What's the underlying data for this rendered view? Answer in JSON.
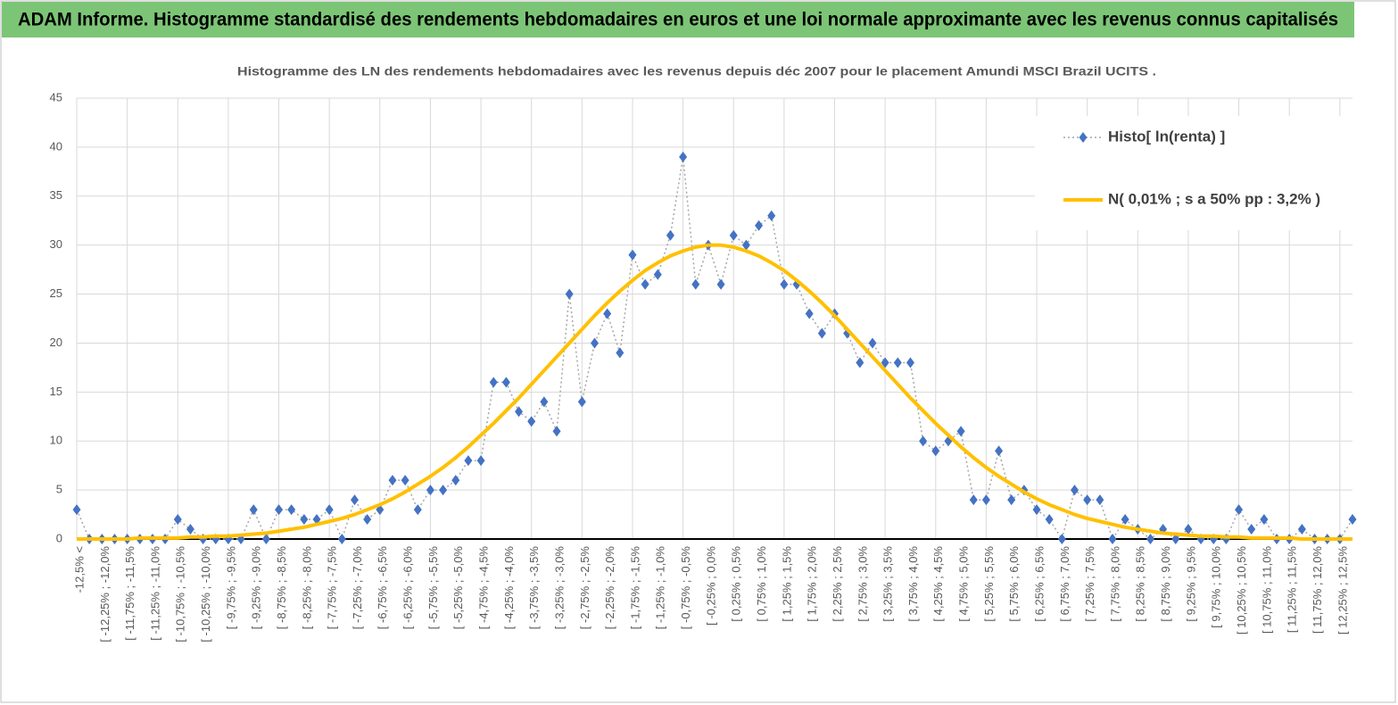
{
  "header": {
    "title": "ADAM Informe. Histogramme standardisé des rendements hebdomadaires en euros et une loi normale approximante avec les revenus connus capitalisés"
  },
  "chart_data": {
    "type": "line",
    "title": "Histogramme  des LN des rendements hebdomadaires avec les revenus depuis déc 2007 pour le placement Amundi MSCI Brazil UCITS .",
    "categories": [
      "-12,5% <",
      null,
      "[ -12,25% ; -12,0%",
      null,
      "[ -11,75% ; -11,5%",
      null,
      "[ -11,25% ; -11,0%",
      null,
      "[ -10,75% ; -10,5%",
      null,
      "[ -10,25% ; -10,0%",
      null,
      "[ -9,75% ; -9,5%",
      null,
      "[ -9,25% ; -9,0%",
      null,
      "[ -8,75% ; -8,5%",
      null,
      "[ -8,25% ; -8,0%",
      null,
      "[ -7,75% ; -7,5%",
      null,
      "[ -7,25% ; -7,0%",
      null,
      "[ -6,75% ; -6,5%",
      null,
      "[ -6,25% ; -6,0%",
      null,
      "[ -5,75% ; -5,5%",
      null,
      "[ -5,25% ; -5,0%",
      null,
      "[ -4,75% ; -4,5%",
      null,
      "[ -4,25% ; -4,0%",
      null,
      "[ -3,75% ; -3,5%",
      null,
      "[ -3,25% ; -3,0%",
      null,
      "[ -2,75% ; -2,5%",
      null,
      "[ -2,25% ; -2,0%",
      null,
      "[ -1,75% ; -1,5%",
      null,
      "[ -1,25% ; -1,0%",
      null,
      "[ -0,75% ; -0,5%",
      null,
      "[ -0,25% ; 0,0%",
      null,
      "[ 0,25% ; 0,5%",
      null,
      "[ 0,75% ; 1,0%",
      null,
      "[ 1,25% ; 1,5%",
      null,
      "[ 1,75% ; 2,0%",
      null,
      "[ 2,25% ; 2,5%",
      null,
      "[ 2,75% ; 3,0%",
      null,
      "[ 3,25% ; 3,5%",
      null,
      "[ 3,75% ; 4,0%",
      null,
      "[ 4,25% ; 4,5%",
      null,
      "[ 4,75% ; 5,0%",
      null,
      "[ 5,25% ; 5,5%",
      null,
      "[ 5,75% ; 6,0%",
      null,
      "[ 6,25% ; 6,5%",
      null,
      "[ 6,75% ; 7,0%",
      null,
      "[ 7,25% ; 7,5%",
      null,
      "[ 7,75% ; 8,0%",
      null,
      "[ 8,25% ; 8,5%",
      null,
      "[ 8,75% ; 9,0%",
      null,
      "[ 9,25% ; 9,5%",
      null,
      "[ 9,75% ; 10,0%",
      null,
      "[ 10,25% ; 10,5%",
      null,
      "[ 10,75% ; 11,0%",
      null,
      "[ 11,25% ; 11,5%",
      null,
      "[ 11,75% ; 12,0%",
      null,
      "[ 12,25% ; 12,5%",
      null
    ],
    "series": [
      {
        "name": "Histo[ ln(renta) ]",
        "color": "#4472c4",
        "line_color": "#a6a6a6",
        "dashed": true,
        "marker": "diamond",
        "values": [
          3,
          0,
          0,
          0,
          0,
          0,
          0,
          0,
          2,
          1,
          0,
          0,
          0,
          0,
          3,
          0,
          3,
          3,
          2,
          2,
          3,
          0,
          4,
          2,
          3,
          6,
          6,
          3,
          5,
          5,
          6,
          8,
          8,
          16,
          16,
          13,
          12,
          14,
          11,
          25,
          14,
          20,
          23,
          19,
          29,
          26,
          27,
          31,
          39,
          26,
          30,
          26,
          31,
          30,
          32,
          33,
          26,
          26,
          23,
          21,
          23,
          21,
          18,
          20,
          18,
          18,
          18,
          10,
          9,
          10,
          11,
          4,
          4,
          9,
          4,
          5,
          3,
          2,
          0,
          5,
          4,
          4,
          0,
          2,
          1,
          0,
          1,
          0,
          1,
          0,
          0,
          0,
          3,
          1,
          2,
          0,
          0,
          1,
          0,
          0,
          0,
          2
        ]
      },
      {
        "name": "N( 0,01% ; s a 50% pp : 3,2% )",
        "color": "#ffc000",
        "line_color": "#ffc000",
        "dashed": false,
        "values": [
          0,
          0,
          0,
          0,
          0,
          0.1,
          0.1,
          0.1,
          0.1,
          0.2,
          0.2,
          0.3,
          0.3,
          0.4,
          0.5,
          0.6,
          0.8,
          1.0,
          1.2,
          1.5,
          1.8,
          2.1,
          2.5,
          3.0,
          3.5,
          4.1,
          4.8,
          5.6,
          6.4,
          7.3,
          8.3,
          9.4,
          10.6,
          11.8,
          13.1,
          14.4,
          15.8,
          17.2,
          18.6,
          20.0,
          21.4,
          22.8,
          24.1,
          25.3,
          26.4,
          27.4,
          28.2,
          28.9,
          29.4,
          29.8,
          30.0,
          30.0,
          29.8,
          29.4,
          28.9,
          28.2,
          27.4,
          26.4,
          25.3,
          24.1,
          22.8,
          21.4,
          20.0,
          18.6,
          17.2,
          15.8,
          14.4,
          13.1,
          11.8,
          10.6,
          9.4,
          8.3,
          7.3,
          6.4,
          5.6,
          4.8,
          4.1,
          3.5,
          3.0,
          2.5,
          2.1,
          1.8,
          1.5,
          1.2,
          1.0,
          0.8,
          0.6,
          0.5,
          0.4,
          0.3,
          0.3,
          0.2,
          0.2,
          0.1,
          0.1,
          0.1,
          0.1,
          0,
          0,
          0,
          0,
          0
        ]
      }
    ],
    "ylim": [
      0,
      45
    ],
    "yticks": [
      0,
      5,
      10,
      15,
      20,
      25,
      30,
      35,
      40,
      45
    ],
    "grid": true,
    "legend": "top-right"
  }
}
